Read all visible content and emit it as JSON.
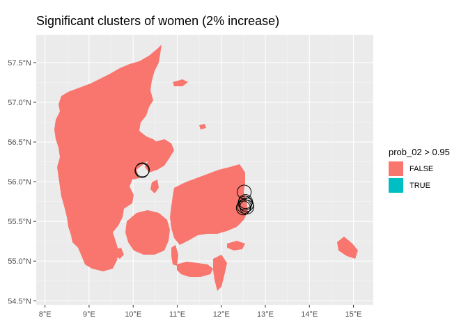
{
  "title": "Significant clusters of women (2% increase)",
  "chart_data": {
    "type": "map",
    "title": "Significant clusters of women (2% increase)",
    "x_ticks": [
      "8°E",
      "9°E",
      "10°E",
      "11°E",
      "12°E",
      "13°E",
      "14°E",
      "15°E"
    ],
    "x_tick_values": [
      8,
      9,
      10,
      11,
      12,
      13,
      14,
      15
    ],
    "y_ticks": [
      "54.5°N",
      "55.0°N",
      "55.5°N",
      "56.0°N",
      "56.5°N",
      "57.0°N",
      "57.5°N"
    ],
    "y_tick_values": [
      54.5,
      55.0,
      55.5,
      56.0,
      56.5,
      57.0,
      57.5
    ],
    "xlim": [
      7.8,
      15.45
    ],
    "ylim": [
      54.45,
      57.85
    ],
    "background": "#EBEBEB",
    "grid": true,
    "fill_colors": {
      "FALSE": "#F8766D",
      "TRUE": "#00BFC4"
    },
    "legend": {
      "title": "prob_02 > 0.95",
      "position": "right",
      "entries": [
        {
          "label": "FALSE",
          "color": "#F8766D"
        },
        {
          "label": "TRUE",
          "color": "#00BFC4"
        }
      ]
    },
    "cluster_circles": [
      {
        "lon": 10.2,
        "lat": 56.14
      },
      {
        "lon": 10.21,
        "lat": 56.15
      },
      {
        "lon": 12.52,
        "lat": 55.87
      },
      {
        "lon": 12.55,
        "lat": 55.75
      },
      {
        "lon": 12.57,
        "lat": 55.71
      },
      {
        "lon": 12.52,
        "lat": 55.69
      },
      {
        "lon": 12.5,
        "lat": 55.67
      },
      {
        "lon": 12.58,
        "lat": 55.68
      },
      {
        "lon": 12.54,
        "lat": 55.73
      }
    ]
  }
}
